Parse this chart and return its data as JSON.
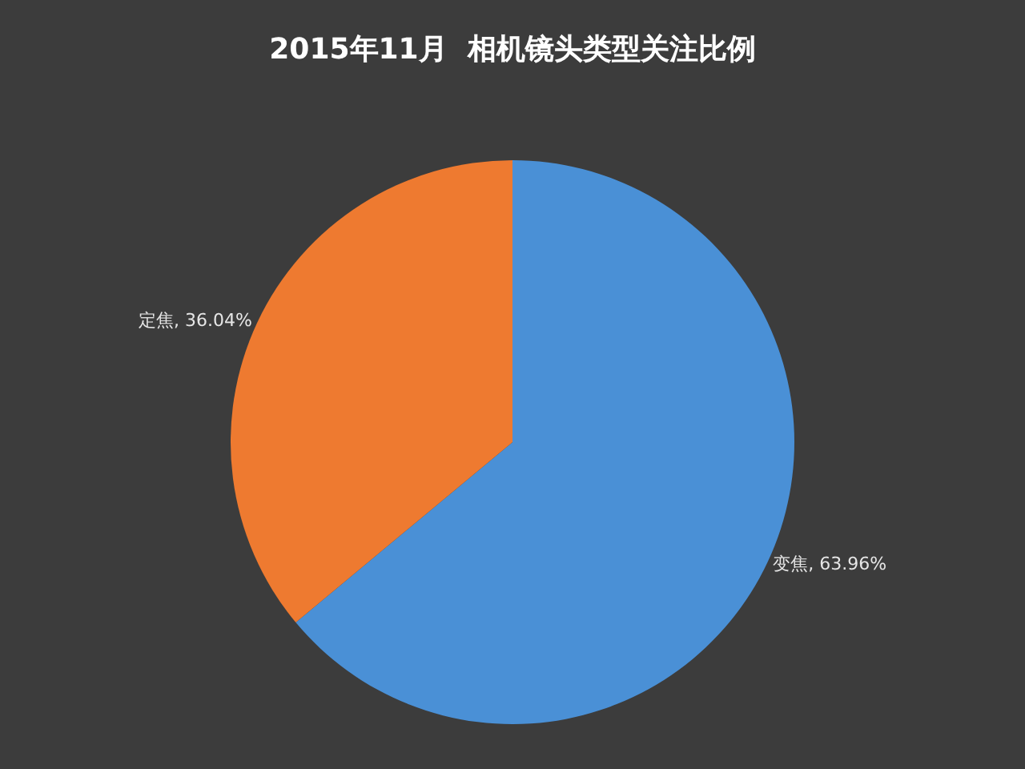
{
  "chart_data": {
    "type": "pie",
    "title": "2015年11月  相机镜头类型关注比例",
    "categories": [
      "变焦",
      "定焦"
    ],
    "values": [
      63.96,
      36.04
    ],
    "colors": [
      "#4a90d6",
      "#ee7a30"
    ],
    "value_labels": [
      "63.96%",
      "36.04%"
    ],
    "legend": false
  }
}
